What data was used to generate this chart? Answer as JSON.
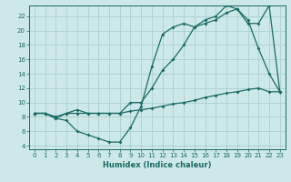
{
  "xlabel": "Humidex (Indice chaleur)",
  "bg_color": "#cde8e8",
  "line_color": "#1a6b65",
  "grid_color": "#aacfcf",
  "xlim": [
    -0.5,
    23.5
  ],
  "ylim": [
    3.5,
    23.5
  ],
  "xticks": [
    0,
    1,
    2,
    3,
    4,
    5,
    6,
    7,
    8,
    9,
    10,
    11,
    12,
    13,
    14,
    15,
    16,
    17,
    18,
    19,
    20,
    21,
    22,
    23
  ],
  "yticks": [
    4,
    6,
    8,
    10,
    12,
    14,
    16,
    18,
    20,
    22
  ],
  "line1_x": [
    0,
    1,
    2,
    3,
    4,
    5,
    6,
    7,
    8,
    9,
    10,
    11,
    12,
    13,
    14,
    15,
    16,
    17,
    18,
    19,
    20,
    21,
    22,
    23
  ],
  "line1_y": [
    8.5,
    8.5,
    8.0,
    8.5,
    8.5,
    8.5,
    8.5,
    8.5,
    8.5,
    8.8,
    9.0,
    9.2,
    9.5,
    9.8,
    10.0,
    10.3,
    10.7,
    11.0,
    11.3,
    11.5,
    11.8,
    12.0,
    11.5,
    11.5
  ],
  "line2_x": [
    0,
    1,
    2,
    3,
    4,
    5,
    6,
    7,
    8,
    9,
    10,
    11,
    12,
    13,
    14,
    15,
    16,
    17,
    18,
    19,
    20,
    21,
    22,
    23
  ],
  "line2_y": [
    8.5,
    8.5,
    7.8,
    7.5,
    6.0,
    5.5,
    5.0,
    4.5,
    4.5,
    6.5,
    9.5,
    15.0,
    19.5,
    20.5,
    21.0,
    20.5,
    21.0,
    21.5,
    22.5,
    23.0,
    21.5,
    17.5,
    14.0,
    11.5
  ],
  "line3_x": [
    0,
    1,
    2,
    3,
    4,
    5,
    6,
    7,
    8,
    9,
    10,
    11,
    12,
    13,
    14,
    15,
    16,
    17,
    18,
    19,
    20,
    21,
    22,
    23
  ],
  "line3_y": [
    8.5,
    8.5,
    7.8,
    8.5,
    9.0,
    8.5,
    8.5,
    8.5,
    8.5,
    10.0,
    10.0,
    12.0,
    14.5,
    16.0,
    18.0,
    20.5,
    21.5,
    22.0,
    23.5,
    23.0,
    21.0,
    21.0,
    23.5,
    11.5
  ]
}
